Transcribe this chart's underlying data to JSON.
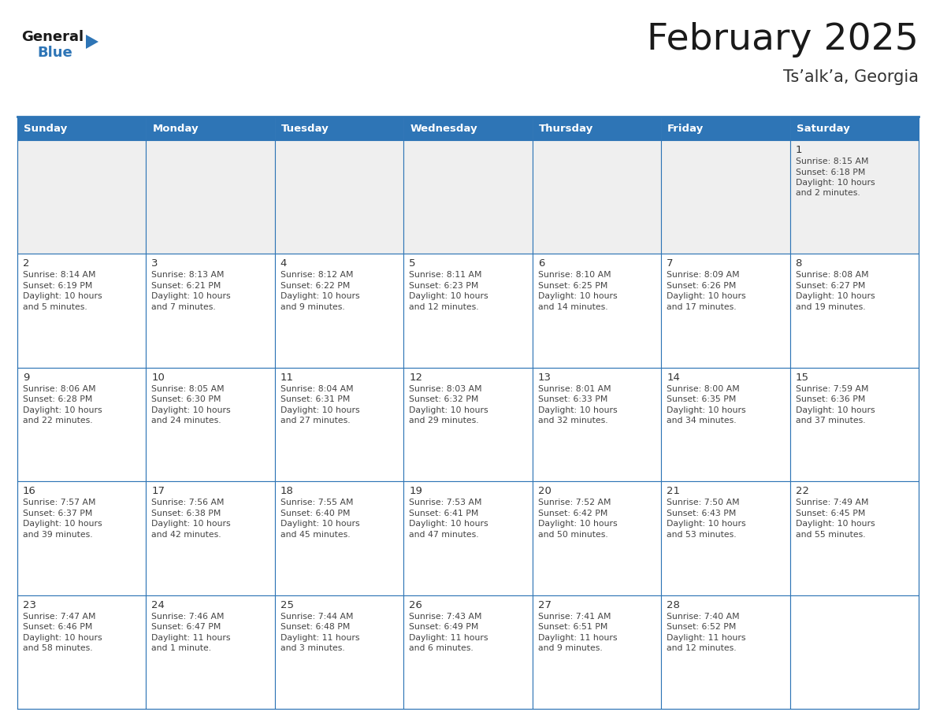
{
  "title": "February 2025",
  "subtitle": "Ts’alk’a, Georgia",
  "days_of_week": [
    "Sunday",
    "Monday",
    "Tuesday",
    "Wednesday",
    "Thursday",
    "Friday",
    "Saturday"
  ],
  "header_bg": "#2E75B6",
  "header_text": "#FFFFFF",
  "cell_bg_white": "#FFFFFF",
  "cell_bg_gray": "#EFEFEF",
  "border_color": "#2E75B6",
  "day_number_color": "#333333",
  "text_color": "#444444",
  "title_color": "#1a1a1a",
  "subtitle_color": "#333333",
  "logo_general_color": "#1a1a1a",
  "logo_blue_color": "#2E75B6",
  "logo_triangle_color": "#2E75B6",
  "calendar_data": [
    [
      null,
      null,
      null,
      null,
      null,
      null,
      {
        "day": 1,
        "sunrise": "8:15 AM",
        "sunset": "6:18 PM",
        "daylight": "10 hours and 2 minutes."
      }
    ],
    [
      {
        "day": 2,
        "sunrise": "8:14 AM",
        "sunset": "6:19 PM",
        "daylight": "10 hours and 5 minutes."
      },
      {
        "day": 3,
        "sunrise": "8:13 AM",
        "sunset": "6:21 PM",
        "daylight": "10 hours and 7 minutes."
      },
      {
        "day": 4,
        "sunrise": "8:12 AM",
        "sunset": "6:22 PM",
        "daylight": "10 hours and 9 minutes."
      },
      {
        "day": 5,
        "sunrise": "8:11 AM",
        "sunset": "6:23 PM",
        "daylight": "10 hours and 12 minutes."
      },
      {
        "day": 6,
        "sunrise": "8:10 AM",
        "sunset": "6:25 PM",
        "daylight": "10 hours and 14 minutes."
      },
      {
        "day": 7,
        "sunrise": "8:09 AM",
        "sunset": "6:26 PM",
        "daylight": "10 hours and 17 minutes."
      },
      {
        "day": 8,
        "sunrise": "8:08 AM",
        "sunset": "6:27 PM",
        "daylight": "10 hours and 19 minutes."
      }
    ],
    [
      {
        "day": 9,
        "sunrise": "8:06 AM",
        "sunset": "6:28 PM",
        "daylight": "10 hours and 22 minutes."
      },
      {
        "day": 10,
        "sunrise": "8:05 AM",
        "sunset": "6:30 PM",
        "daylight": "10 hours and 24 minutes."
      },
      {
        "day": 11,
        "sunrise": "8:04 AM",
        "sunset": "6:31 PM",
        "daylight": "10 hours and 27 minutes."
      },
      {
        "day": 12,
        "sunrise": "8:03 AM",
        "sunset": "6:32 PM",
        "daylight": "10 hours and 29 minutes."
      },
      {
        "day": 13,
        "sunrise": "8:01 AM",
        "sunset": "6:33 PM",
        "daylight": "10 hours and 32 minutes."
      },
      {
        "day": 14,
        "sunrise": "8:00 AM",
        "sunset": "6:35 PM",
        "daylight": "10 hours and 34 minutes."
      },
      {
        "day": 15,
        "sunrise": "7:59 AM",
        "sunset": "6:36 PM",
        "daylight": "10 hours and 37 minutes."
      }
    ],
    [
      {
        "day": 16,
        "sunrise": "7:57 AM",
        "sunset": "6:37 PM",
        "daylight": "10 hours and 39 minutes."
      },
      {
        "day": 17,
        "sunrise": "7:56 AM",
        "sunset": "6:38 PM",
        "daylight": "10 hours and 42 minutes."
      },
      {
        "day": 18,
        "sunrise": "7:55 AM",
        "sunset": "6:40 PM",
        "daylight": "10 hours and 45 minutes."
      },
      {
        "day": 19,
        "sunrise": "7:53 AM",
        "sunset": "6:41 PM",
        "daylight": "10 hours and 47 minutes."
      },
      {
        "day": 20,
        "sunrise": "7:52 AM",
        "sunset": "6:42 PM",
        "daylight": "10 hours and 50 minutes."
      },
      {
        "day": 21,
        "sunrise": "7:50 AM",
        "sunset": "6:43 PM",
        "daylight": "10 hours and 53 minutes."
      },
      {
        "day": 22,
        "sunrise": "7:49 AM",
        "sunset": "6:45 PM",
        "daylight": "10 hours and 55 minutes."
      }
    ],
    [
      {
        "day": 23,
        "sunrise": "7:47 AM",
        "sunset": "6:46 PM",
        "daylight": "10 hours and 58 minutes."
      },
      {
        "day": 24,
        "sunrise": "7:46 AM",
        "sunset": "6:47 PM",
        "daylight": "11 hours and 1 minute."
      },
      {
        "day": 25,
        "sunrise": "7:44 AM",
        "sunset": "6:48 PM",
        "daylight": "11 hours and 3 minutes."
      },
      {
        "day": 26,
        "sunrise": "7:43 AM",
        "sunset": "6:49 PM",
        "daylight": "11 hours and 6 minutes."
      },
      {
        "day": 27,
        "sunrise": "7:41 AM",
        "sunset": "6:51 PM",
        "daylight": "11 hours and 9 minutes."
      },
      {
        "day": 28,
        "sunrise": "7:40 AM",
        "sunset": "6:52 PM",
        "daylight": "11 hours and 12 minutes."
      },
      null
    ]
  ]
}
